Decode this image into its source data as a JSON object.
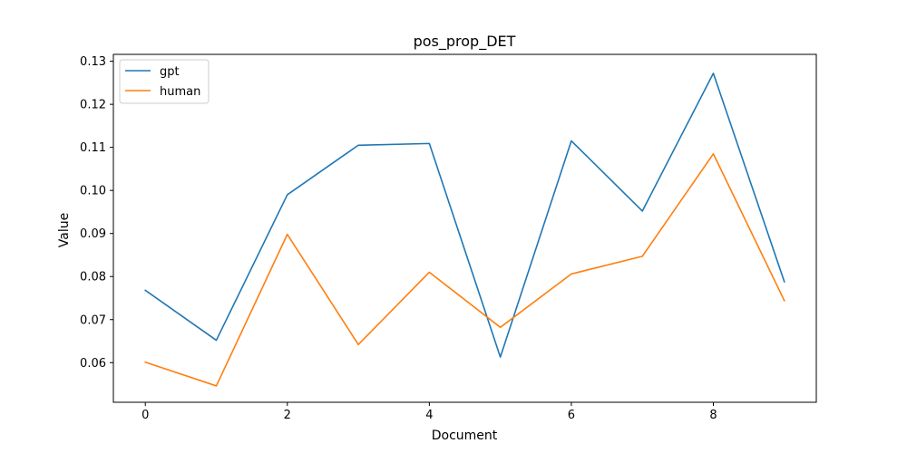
{
  "chart_data": {
    "type": "line",
    "title": "pos_prop_DET",
    "xlabel": "Document",
    "ylabel": "Value",
    "x": [
      0,
      1,
      2,
      3,
      4,
      5,
      6,
      7,
      8,
      9
    ],
    "xlim": [
      -0.45,
      9.45
    ],
    "ylim": [
      0.0508,
      0.1316
    ],
    "xticks": [
      0,
      2,
      4,
      6,
      8
    ],
    "yticks": [
      0.06,
      0.07,
      0.08,
      0.09,
      0.1,
      0.11,
      0.12,
      0.13
    ],
    "ytick_labels": [
      "0.06",
      "0.07",
      "0.08",
      "0.09",
      "0.10",
      "0.11",
      "0.12",
      "0.13"
    ],
    "grid": false,
    "legend_position": "top-left",
    "series": [
      {
        "name": "gpt",
        "color": "#1f77b4",
        "values": [
          0.0768,
          0.0652,
          0.099,
          0.1105,
          0.1109,
          0.0613,
          0.1115,
          0.0952,
          0.1272,
          0.0788
        ]
      },
      {
        "name": "human",
        "color": "#ff7f0e",
        "values": [
          0.0601,
          0.0546,
          0.0898,
          0.0642,
          0.081,
          0.0682,
          0.0806,
          0.0847,
          0.1085,
          0.0744
        ]
      }
    ]
  }
}
